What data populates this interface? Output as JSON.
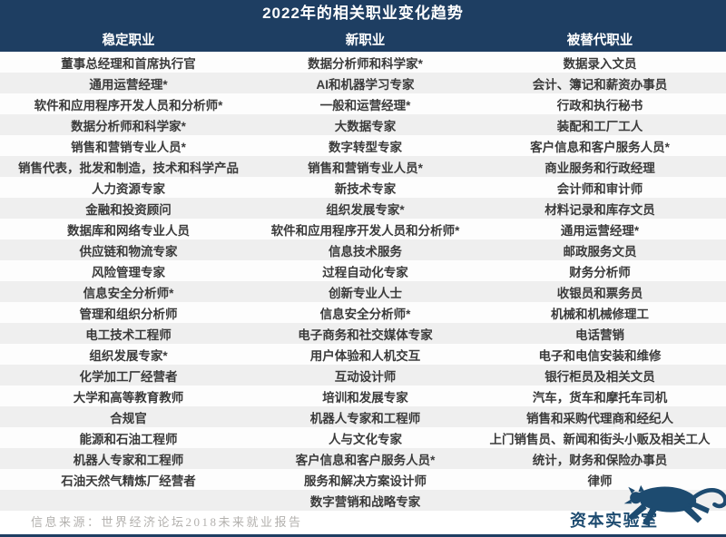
{
  "chart_data": {
    "type": "table",
    "title": "2022年的相关职业变化趋势",
    "columns": [
      {
        "header": "稳定职业",
        "items": [
          "董事总经理和首席执行官",
          "通用运营经理*",
          "软件和应用程序开发人员和分析师*",
          "数据分析师和科学家*",
          "销售和营销专业人员*",
          "销售代表，批发和制造，技术和科学产品",
          "人力资源专家",
          "金融和投资顾问",
          "数据库和网络专业人员",
          "供应链和物流专家",
          "风险管理专家",
          "信息安全分析师*",
          "管理和组织分析师",
          "电工技术工程师",
          "组织发展专家*",
          "化学加工厂经营者",
          "大学和高等教育教师",
          "合规官",
          "能源和石油工程师",
          "机器人专家和工程师",
          "石油天然气精炼厂经营者",
          ""
        ]
      },
      {
        "header": "新职业",
        "items": [
          "数据分析师和科学家*",
          "AI和机器学习专家",
          "一般和运营经理*",
          "大数据专家",
          "数字转型专家",
          "销售和营销专业人员*",
          "新技术专家",
          "组织发展专家*",
          "软件和应用程序开发人员和分析师*",
          "信息技术服务",
          "过程自动化专家",
          "创新专业人士",
          "信息安全分析师*",
          "电子商务和社交媒体专家",
          "用户体验和人机交互",
          "互动设计师",
          "培训和发展专家",
          "机器人专家和工程师",
          "人与文化专家",
          "客户信息和客户服务人员*",
          "服务和解决方案设计师",
          "数字营销和战略专家"
        ]
      },
      {
        "header": "被替代职业",
        "items": [
          "数据录入文员",
          "会计、簿记和薪资办事员",
          "行政和执行秘书",
          "装配和工厂工人",
          "客户信息和客户服务人员*",
          "商业服务和行政经理",
          "会计师和审计师",
          "材料记录和库存文员",
          "通用运营经理*",
          "邮政服务文员",
          "财务分析师",
          "收银员和票务员",
          "机械和机械修理工",
          "电话营销",
          "电子和电信安装和维修",
          "银行柜员及相关文员",
          "汽车，货车和摩托车司机",
          "销售和采购代理商和经纪人",
          "上门销售员、新闻和街头小贩及相关工人",
          "统计，财务和保险办事员",
          "律师",
          ""
        ]
      }
    ],
    "source": "信息来源：世界经济论坛2018未来就业报告"
  },
  "logo": {
    "text": "资本实验室",
    "icon": "leaping-leopard-icon"
  },
  "colors": {
    "header_bg": "#1e3e62",
    "row_stripe": "#efefef",
    "row_white": "#fdfdfd",
    "body_text": "#3a3a3a",
    "source_text": "#b3b1ae",
    "logo_navy": "#1d4b70"
  }
}
